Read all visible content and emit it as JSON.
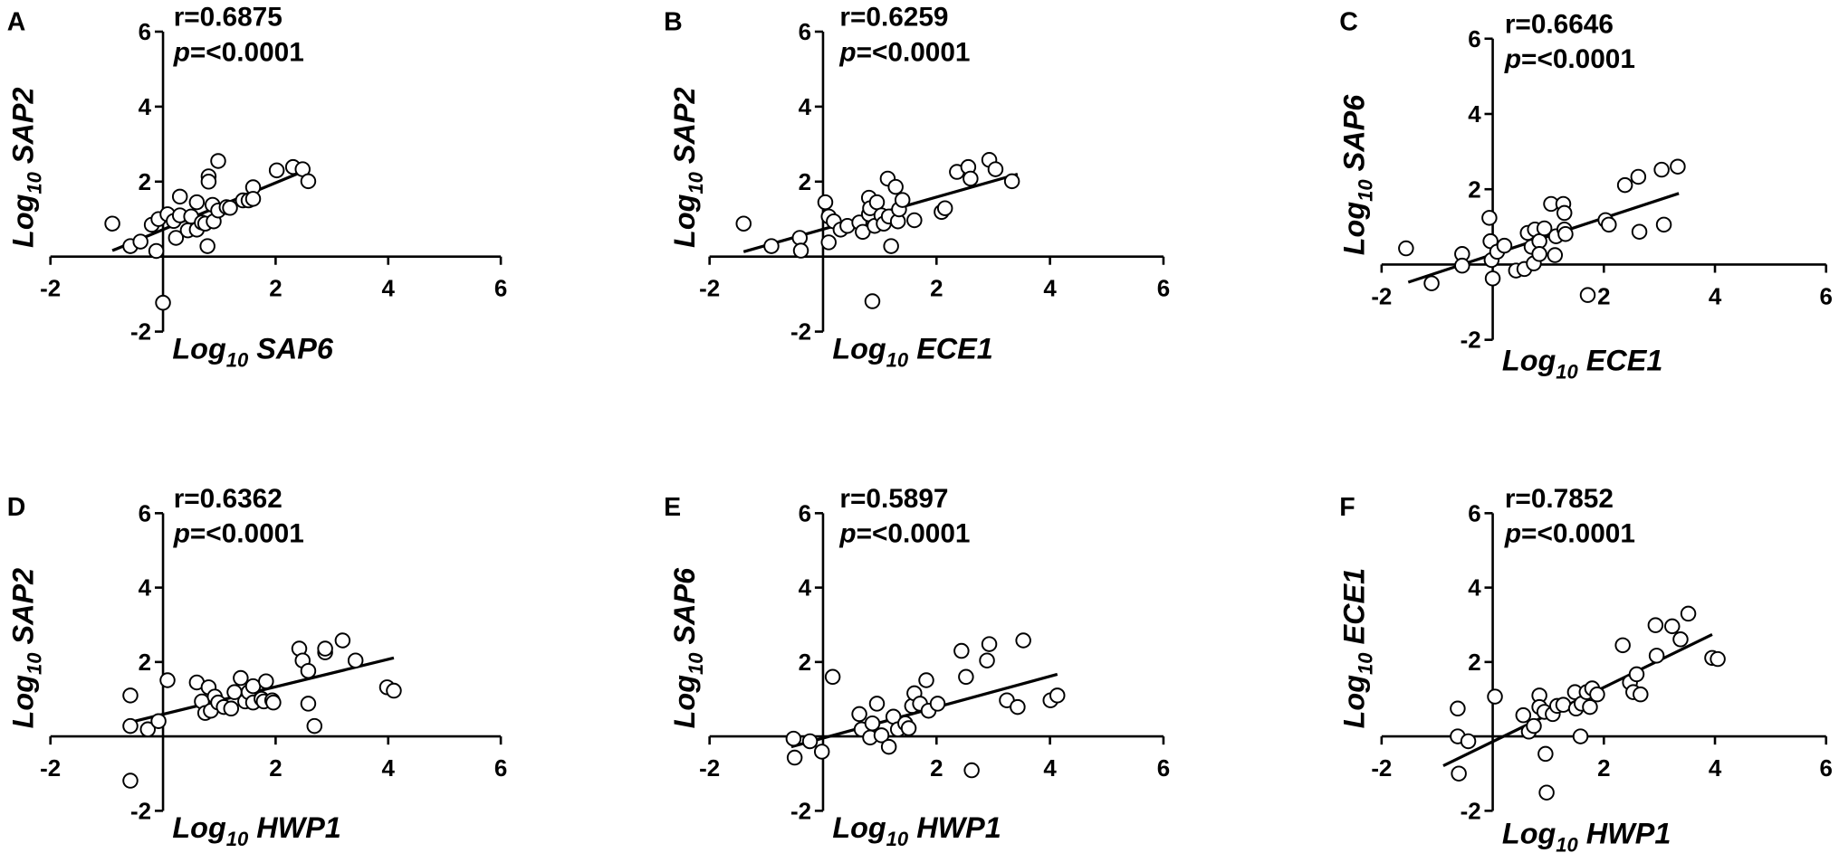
{
  "chart_data": [
    {
      "type": "scatter",
      "panel": "A",
      "r_text": "r=0.6875",
      "p_text": {
        "symbol": "p",
        "rest": "=<0.0001"
      },
      "xlabel": {
        "base": "Log",
        "sub": "10",
        "name": "SAP6"
      },
      "ylabel": {
        "base": "Log",
        "sub": "10",
        "name": "SAP2"
      },
      "xlim": [
        -2,
        6
      ],
      "ylim": [
        -2,
        6
      ],
      "xticks": [
        -2,
        2,
        4,
        6
      ],
      "yticks": [
        -2,
        2,
        4,
        6
      ],
      "color": "#ffffff",
      "x": [
        -0.9,
        -0.58,
        -0.4,
        -0.2,
        -0.12,
        -0.08,
        0,
        0.08,
        0.19,
        0.23,
        0.3,
        0.3,
        0.44,
        0.5,
        0.6,
        0.6,
        0.69,
        0.75,
        0.79,
        0.81,
        0.81,
        0.88,
        0.9,
        0.98,
        0.98,
        1.13,
        1.19,
        1.42,
        1.52,
        1.6,
        1.6,
        2.02,
        2.31,
        2.48,
        2.58
      ],
      "y": [
        0.88,
        0.28,
        0.4,
        0.85,
        0.15,
        1.0,
        -1.23,
        1.13,
        0.95,
        0.5,
        1.1,
        1.6,
        0.7,
        1.07,
        0.72,
        1.45,
        0.91,
        0.88,
        0.28,
        2.14,
        2.0,
        1.38,
        0.94,
        2.55,
        1.23,
        1.32,
        1.3,
        1.5,
        1.5,
        1.85,
        1.54,
        2.3,
        2.39,
        2.33,
        2.01
      ],
      "fit": {
        "x": [
          -0.9,
          2.42
        ],
        "y": [
          0.16,
          2.23
        ]
      }
    },
    {
      "type": "scatter",
      "panel": "B",
      "r_text": "r=0.6259",
      "p_text": {
        "symbol": "p",
        "rest": "=<0.0001"
      },
      "xlabel": {
        "base": "Log",
        "sub": "10",
        "name": "ECE1"
      },
      "ylabel": {
        "base": "Log",
        "sub": "10",
        "name": "SAP2"
      },
      "xlim": [
        -2,
        6
      ],
      "ylim": [
        -2,
        6
      ],
      "xticks": [
        -2,
        2,
        4,
        6
      ],
      "yticks": [
        -2,
        2,
        4,
        6
      ],
      "color": "#ffffff",
      "x": [
        -1.4,
        -0.91,
        -0.41,
        -0.39,
        0.04,
        0.1,
        0.1,
        0.19,
        0.31,
        0.43,
        0.64,
        0.7,
        0.81,
        0.81,
        0.83,
        0.87,
        0.91,
        0.95,
        1.03,
        1.07,
        1.14,
        1.16,
        1.2,
        1.28,
        1.32,
        1.34,
        1.4,
        1.61,
        2.09,
        2.15,
        2.36,
        2.56,
        2.6,
        2.93,
        3.04,
        3.33
      ],
      "y": [
        0.88,
        0.28,
        0.5,
        0.16,
        1.45,
        1.07,
        0.38,
        0.94,
        0.72,
        0.82,
        0.91,
        0.66,
        1.57,
        1.13,
        1.29,
        -1.19,
        0.82,
        1.45,
        1.1,
        0.88,
        2.08,
        1.07,
        0.28,
        1.86,
        0.94,
        1.26,
        1.51,
        0.97,
        1.19,
        1.29,
        2.26,
        2.39,
        2.08,
        2.58,
        2.33,
        2.01
      ],
      "fit": {
        "x": [
          -1.4,
          3.43
        ],
        "y": [
          0.13,
          2.2
        ]
      }
    },
    {
      "type": "scatter",
      "panel": "C",
      "r_text": "r=0.6646",
      "p_text": {
        "symbol": "p",
        "rest": "=<0.0001"
      },
      "xlabel": {
        "base": "Log",
        "sub": "10",
        "name": "ECE1"
      },
      "ylabel": {
        "base": "Log",
        "sub": "10",
        "name": "SAP6"
      },
      "xlim": [
        -2,
        6
      ],
      "ylim": [
        -2,
        6
      ],
      "xticks": [
        -2,
        2,
        4,
        6
      ],
      "yticks": [
        -2,
        2,
        4,
        6
      ],
      "color": "#ffffff",
      "x": [
        -1.56,
        -1.1,
        -0.55,
        -0.55,
        -0.06,
        -0.04,
        -0.02,
        0,
        0.08,
        0.21,
        0.42,
        0.57,
        0.63,
        0.7,
        0.74,
        0.76,
        0.84,
        0.84,
        0.93,
        1.05,
        1.12,
        1.14,
        1.27,
        1.29,
        1.29,
        1.31,
        1.71,
        2.03,
        2.09,
        2.38,
        2.62,
        2.64,
        3.08,
        3.04,
        3.33
      ],
      "y": [
        0.43,
        -0.5,
        0.28,
        -0.03,
        1.24,
        0.62,
        0.12,
        -0.37,
        0.34,
        0.5,
        -0.16,
        -0.12,
        0.84,
        0.47,
        0.03,
        0.93,
        0.62,
        0.28,
        0.96,
        1.61,
        0.25,
        0.75,
        1.61,
        1.37,
        0.93,
        0.81,
        -0.81,
        1.18,
        1.06,
        2.11,
        2.33,
        0.87,
        1.06,
        2.52,
        2.6
      ],
      "fit": {
        "x": [
          -1.52,
          3.35
        ],
        "y": [
          -0.47,
          1.89
        ]
      }
    },
    {
      "type": "scatter",
      "panel": "D",
      "r_text": "r=0.6362",
      "p_text": {
        "symbol": "p",
        "rest": "=<0.0001"
      },
      "xlabel": {
        "base": "Log",
        "sub": "10",
        "name": "HWP1"
      },
      "ylabel": {
        "base": "Log",
        "sub": "10",
        "name": "SAP2"
      },
      "xlim": [
        -2,
        6
      ],
      "ylim": [
        -2,
        6
      ],
      "xticks": [
        -2,
        2,
        4,
        6
      ],
      "yticks": [
        -2,
        2,
        4,
        6
      ],
      "color": "#ffffff",
      "x": [
        -0.58,
        -0.58,
        -0.58,
        -0.27,
        -0.08,
        0.08,
        0.6,
        0.69,
        0.75,
        0.81,
        0.85,
        0.92,
        0.98,
        1.08,
        1.21,
        1.27,
        1.38,
        1.46,
        1.52,
        1.6,
        1.6,
        1.75,
        1.79,
        1.83,
        1.94,
        1.96,
        2.42,
        2.48,
        2.58,
        2.58,
        2.69,
        2.88,
        2.88,
        3.19,
        3.42,
        3.98,
        4.1
      ],
      "y": [
        1.1,
        -1.19,
        0.28,
        0.19,
        0.41,
        1.51,
        1.45,
        0.94,
        0.63,
        1.32,
        0.69,
        1.07,
        0.91,
        0.79,
        0.75,
        1.19,
        1.57,
        0.94,
        1.19,
        1.35,
        0.91,
        1.01,
        0.94,
        1.48,
        0.97,
        0.91,
        2.36,
        2.04,
        1.76,
        0.88,
        0.28,
        2.26,
        2.36,
        2.58,
        2.04,
        1.32,
        1.23
      ],
      "fit": {
        "x": [
          -0.58,
          4.1
        ],
        "y": [
          0.38,
          2.11
        ]
      }
    },
    {
      "type": "scatter",
      "panel": "E",
      "r_text": "r=0.5897",
      "p_text": {
        "symbol": "p",
        "rest": "=<0.0001"
      },
      "xlabel": {
        "base": "Log",
        "sub": "10",
        "name": "HWP1"
      },
      "ylabel": {
        "base": "Log",
        "sub": "10",
        "name": "SAP6"
      },
      "xlim": [
        -2,
        6
      ],
      "ylim": [
        -2,
        6
      ],
      "xticks": [
        -2,
        2,
        4,
        6
      ],
      "yticks": [
        -2,
        2,
        4,
        6
      ],
      "color": "#ffffff",
      "x": [
        -0.52,
        -0.5,
        -0.23,
        -0.02,
        0.17,
        0.64,
        0.68,
        0.83,
        0.87,
        0.95,
        1.03,
        1.16,
        1.24,
        1.32,
        1.45,
        1.51,
        1.57,
        1.61,
        1.71,
        1.82,
        1.86,
        2.02,
        2.44,
        2.52,
        2.62,
        2.89,
        2.93,
        3.24,
        3.43,
        3.53,
        4.01,
        4.13
      ],
      "y": [
        -0.06,
        -0.57,
        -0.13,
        -0.41,
        1.6,
        0.6,
        0.19,
        -0.03,
        0.35,
        0.88,
        0.03,
        -0.28,
        0.53,
        0.19,
        0.35,
        0.22,
        0.82,
        1.16,
        0.88,
        1.51,
        0.69,
        0.88,
        2.3,
        1.6,
        -0.91,
        2.04,
        2.48,
        0.97,
        0.79,
        2.58,
        0.97,
        1.1
      ],
      "fit": {
        "x": [
          -0.56,
          4.13
        ],
        "y": [
          -0.28,
          1.67
        ]
      }
    },
    {
      "type": "scatter",
      "panel": "F",
      "r_text": "r=0.7852",
      "p_text": {
        "symbol": "p",
        "rest": "=<0.0001"
      },
      "xlabel": {
        "base": "Log",
        "sub": "10",
        "name": "HWP1"
      },
      "ylabel": {
        "base": "Log",
        "sub": "10",
        "name": "ECE1"
      },
      "xlim": [
        -2,
        6
      ],
      "ylim": [
        -2,
        6
      ],
      "xticks": [
        -2,
        2,
        4,
        6
      ],
      "yticks": [
        -2,
        2,
        4,
        6
      ],
      "color": "#ffffff",
      "x": [
        -0.63,
        -0.63,
        -0.61,
        -0.44,
        0.04,
        0.55,
        0.65,
        0.74,
        0.84,
        0.84,
        0.93,
        0.95,
        0.97,
        1.08,
        1.16,
        1.27,
        1.48,
        1.5,
        1.58,
        1.6,
        1.69,
        1.75,
        1.79,
        1.88,
        2.34,
        2.47,
        2.53,
        2.59,
        2.66,
        2.93,
        2.95,
        3.23,
        3.38,
        3.52,
        3.95,
        4.05
      ],
      "y": [
        0.75,
        0,
        -1.0,
        -0.13,
        1.07,
        0.57,
        0.13,
        0.28,
        1.1,
        0.79,
        0.66,
        -0.47,
        -1.51,
        0.6,
        0.82,
        0.85,
        1.19,
        0.75,
        0,
        0.88,
        1.19,
        0.79,
        1.29,
        1.13,
        2.45,
        1.45,
        1.19,
        1.67,
        1.13,
        2.99,
        2.17,
        2.96,
        2.61,
        3.3,
        2.11,
        2.08
      ],
      "fit": {
        "x": [
          -0.89,
          3.95
        ],
        "y": [
          -0.79,
          2.74
        ]
      }
    }
  ]
}
